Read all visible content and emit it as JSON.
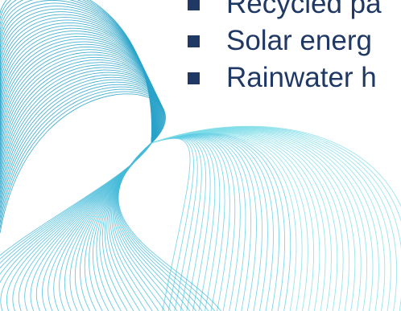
{
  "slide": {
    "bullets": [
      {
        "text": "Recycled pa"
      },
      {
        "text": "Solar energ"
      },
      {
        "text": "Rainwater h"
      }
    ],
    "text_color": "#1f3864",
    "bullet_color": "#1f3864",
    "wave_colors": [
      "#2aa3c9",
      "#46bcd9",
      "#5fcde3",
      "#7fdde8"
    ]
  }
}
